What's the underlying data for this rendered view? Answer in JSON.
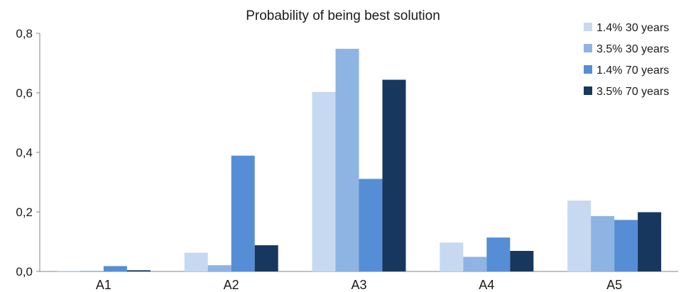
{
  "chart_data": {
    "type": "bar",
    "title": "Probability of being best solution",
    "xlabel": "",
    "ylabel": "",
    "categories": [
      "A1",
      "A2",
      "A3",
      "A4",
      "A5"
    ],
    "ylim": [
      0,
      0.8
    ],
    "yticks": [
      0,
      0.2,
      0.4,
      0.6,
      0.8
    ],
    "ytick_labels": [
      "0,0",
      "0,2",
      "0,4",
      "0,6",
      "0,8"
    ],
    "grid": false,
    "legend_position": "top-right",
    "series": [
      {
        "name": "1.4% 30 years",
        "color": "#c6d9f1",
        "values": [
          0.002,
          0.063,
          0.603,
          0.097,
          0.238
        ]
      },
      {
        "name": "3.5% 30 years",
        "color": "#8db4e3",
        "values": [
          0.002,
          0.021,
          0.748,
          0.049,
          0.186
        ]
      },
      {
        "name": "1.4% 70 years",
        "color": "#558ed5",
        "values": [
          0.018,
          0.389,
          0.311,
          0.114,
          0.173
        ]
      },
      {
        "name": "3.5% 70 years",
        "color": "#17375e",
        "values": [
          0.004,
          0.088,
          0.644,
          0.069,
          0.199
        ]
      }
    ]
  }
}
